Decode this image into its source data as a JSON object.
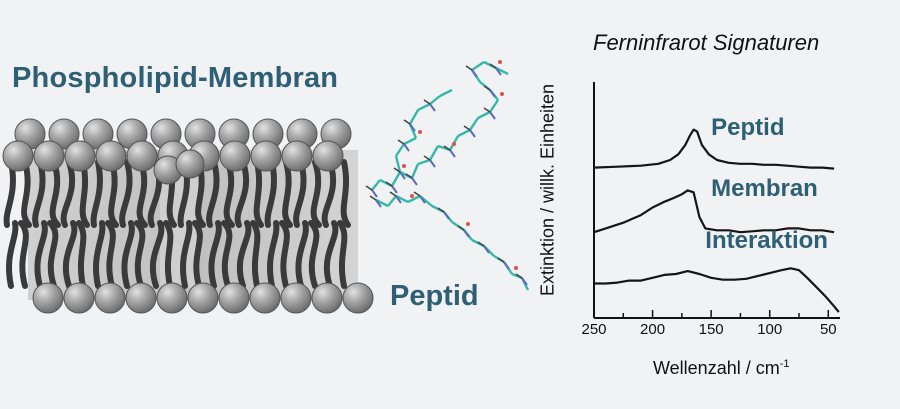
{
  "diagram": {
    "membrane_title": "Phospholipid-Membran",
    "peptide_label": "Peptid"
  },
  "chart_data": {
    "type": "line",
    "title": "Ferninfrarot Signaturen",
    "xlabel": "Wellenzahl / cm",
    "xlabel_superscript": "-1",
    "ylabel": "Extinktion / willk. Einheiten",
    "x_ticks": [
      250,
      200,
      150,
      100,
      50
    ],
    "xlim": [
      250,
      40
    ],
    "x_reversed": true,
    "y_ticks_shown": false,
    "series": [
      {
        "name": "Peptid",
        "x": [
          250,
          230,
          210,
          195,
          185,
          178,
          172,
          168,
          165,
          162,
          158,
          152,
          145,
          135,
          125,
          115,
          105,
          95,
          85,
          75,
          65,
          55,
          45
        ],
        "y": [
          0.76,
          0.765,
          0.77,
          0.78,
          0.8,
          0.83,
          0.88,
          0.93,
          0.96,
          0.95,
          0.88,
          0.83,
          0.8,
          0.785,
          0.78,
          0.78,
          0.775,
          0.775,
          0.77,
          0.765,
          0.76,
          0.76,
          0.755
        ]
      },
      {
        "name": "Membran",
        "x": [
          250,
          240,
          225,
          210,
          200,
          190,
          182,
          175,
          170,
          165,
          160,
          155,
          145,
          135,
          125,
          115,
          105,
          95,
          85,
          75,
          65,
          55,
          45
        ],
        "y": [
          0.42,
          0.44,
          0.47,
          0.51,
          0.55,
          0.58,
          0.6,
          0.62,
          0.64,
          0.63,
          0.5,
          0.44,
          0.43,
          0.43,
          0.42,
          0.425,
          0.43,
          0.43,
          0.44,
          0.44,
          0.43,
          0.43,
          0.42
        ]
      },
      {
        "name": "Interaktion",
        "x": [
          250,
          240,
          230,
          220,
          210,
          200,
          190,
          180,
          170,
          160,
          150,
          140,
          130,
          120,
          110,
          100,
          90,
          82,
          75,
          68,
          60,
          52,
          45,
          41
        ],
        "y": [
          0.15,
          0.15,
          0.155,
          0.165,
          0.165,
          0.18,
          0.195,
          0.2,
          0.215,
          0.2,
          0.18,
          0.17,
          0.17,
          0.175,
          0.19,
          0.205,
          0.22,
          0.23,
          0.22,
          0.18,
          0.13,
          0.08,
          0.03,
          0.0
        ]
      }
    ]
  }
}
